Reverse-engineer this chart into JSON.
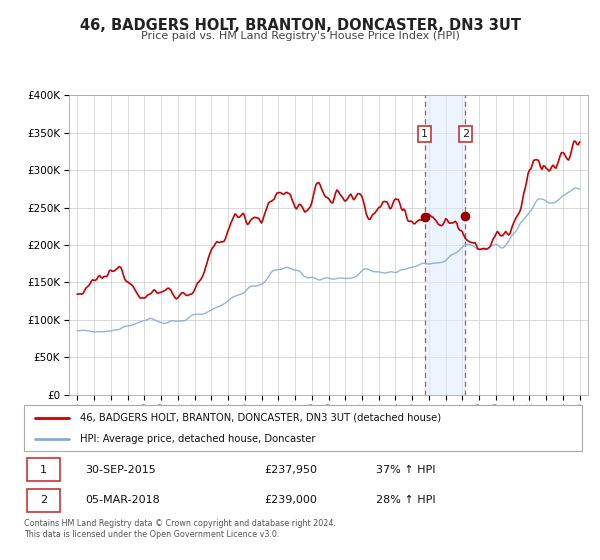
{
  "title": "46, BADGERS HOLT, BRANTON, DONCASTER, DN3 3UT",
  "subtitle": "Price paid vs. HM Land Registry's House Price Index (HPI)",
  "legend_line1": "46, BADGERS HOLT, BRANTON, DONCASTER, DN3 3UT (detached house)",
  "legend_line2": "HPI: Average price, detached house, Doncaster",
  "annotation1_label": "1",
  "annotation1_date": "30-SEP-2015",
  "annotation1_price": "£237,950",
  "annotation1_hpi": "37% ↑ HPI",
  "annotation2_label": "2",
  "annotation2_date": "05-MAR-2018",
  "annotation2_price": "£239,000",
  "annotation2_hpi": "28% ↑ HPI",
  "footnote1": "Contains HM Land Registry data © Crown copyright and database right 2024.",
  "footnote2": "This data is licensed under the Open Government Licence v3.0.",
  "property_color": "#cc0000",
  "hpi_color": "#88aadd",
  "sale1_x": 2015.75,
  "sale1_y": 237950,
  "sale2_x": 2018.17,
  "sale2_y": 239000,
  "shade_color": "#ddeeff",
  "shade_alpha": 0.55,
  "ylim": [
    0,
    400000
  ],
  "xlim": [
    1994.5,
    2025.5
  ],
  "yticks": [
    0,
    50000,
    100000,
    150000,
    200000,
    250000,
    300000,
    350000,
    400000
  ]
}
